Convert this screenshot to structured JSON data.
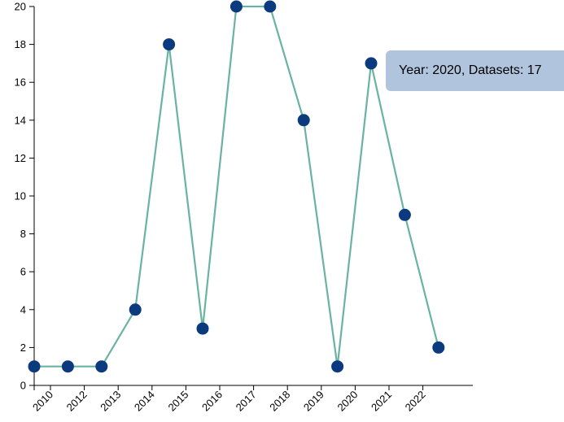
{
  "colors": {
    "line": "#69b3a2",
    "point": "#0b3a7e",
    "tooltip_bg": "#b0c4de",
    "axis": "#000000"
  },
  "tooltip": {
    "text": "Year: 2020, Datasets: 17"
  },
  "chart_data": {
    "type": "line",
    "title": "",
    "xlabel": "",
    "ylabel": "",
    "x_ticks": [
      "2010",
      "2012",
      "2013",
      "2014",
      "2015",
      "2016",
      "2017",
      "2018",
      "2019",
      "2020",
      "2021",
      "2022"
    ],
    "y_ticks": [
      0,
      2,
      4,
      6,
      8,
      10,
      12,
      14,
      16,
      18,
      20
    ],
    "ylim": [
      0,
      20
    ],
    "grid": false,
    "values": [
      1,
      1,
      1,
      4,
      18,
      3,
      20,
      20,
      14,
      1,
      17,
      9,
      2
    ]
  }
}
